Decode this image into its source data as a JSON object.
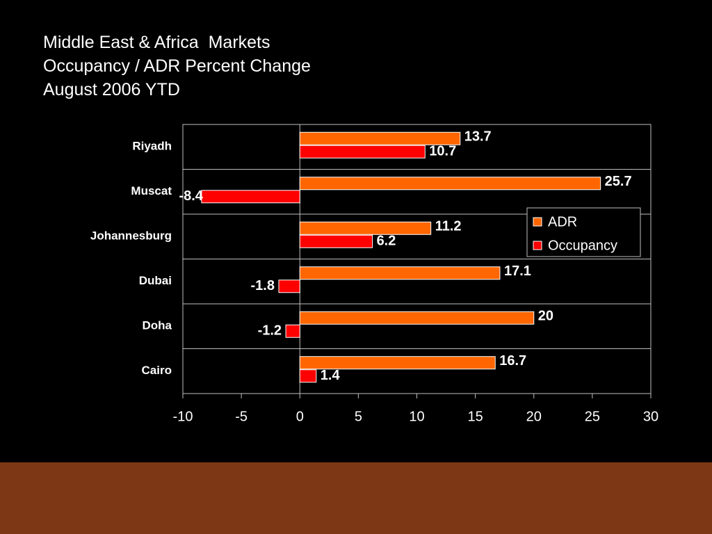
{
  "slide": {
    "title_lines": [
      "Middle East & Africa  Markets",
      "Occupancy / ADR Percent Change",
      "August 2006 YTD"
    ],
    "background_color": "#000000",
    "footer_color": "#7e3714"
  },
  "chart_data": {
    "type": "bar",
    "orientation": "horizontal",
    "categories": [
      "Riyadh",
      "Muscat",
      "Johannesburg",
      "Dubai",
      "Doha",
      "Cairo"
    ],
    "series": [
      {
        "name": "ADR",
        "values": [
          13.7,
          25.7,
          11.2,
          17.1,
          20,
          16.7
        ],
        "color": "#ff6600"
      },
      {
        "name": "Occupancy",
        "values": [
          10.7,
          -8.4,
          6.2,
          -1.8,
          -1.2,
          1.4
        ],
        "color": "#ff0000"
      }
    ],
    "xlim": [
      -10,
      30
    ],
    "xticks": [
      -10,
      -5,
      0,
      5,
      10,
      15,
      20,
      25,
      30
    ],
    "grid": "horizontal category separators",
    "legend_position": "right",
    "data_labels": true
  }
}
